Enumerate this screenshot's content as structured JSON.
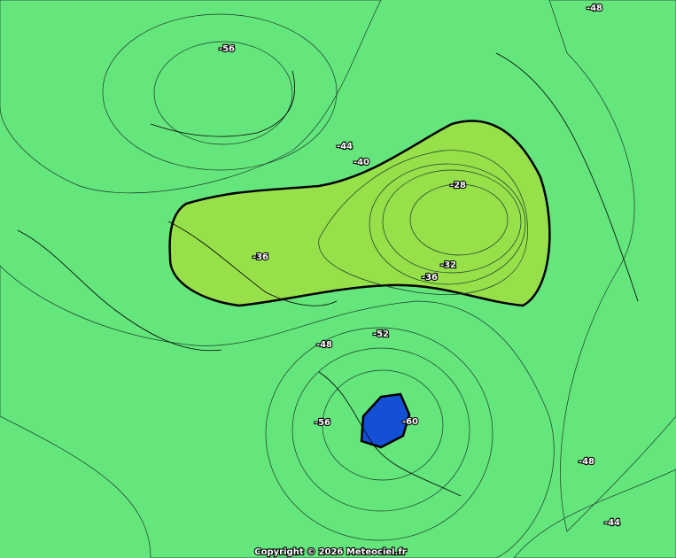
{
  "contour_labels": [
    "-48",
    "-56",
    "-44",
    "-40",
    "-28",
    "-36",
    "-32",
    "-36",
    "-52",
    "-48",
    "-56",
    "-60",
    "-48",
    "-44"
  ],
  "copyright": "Copyright © 2026 Meteociel.fr"
}
